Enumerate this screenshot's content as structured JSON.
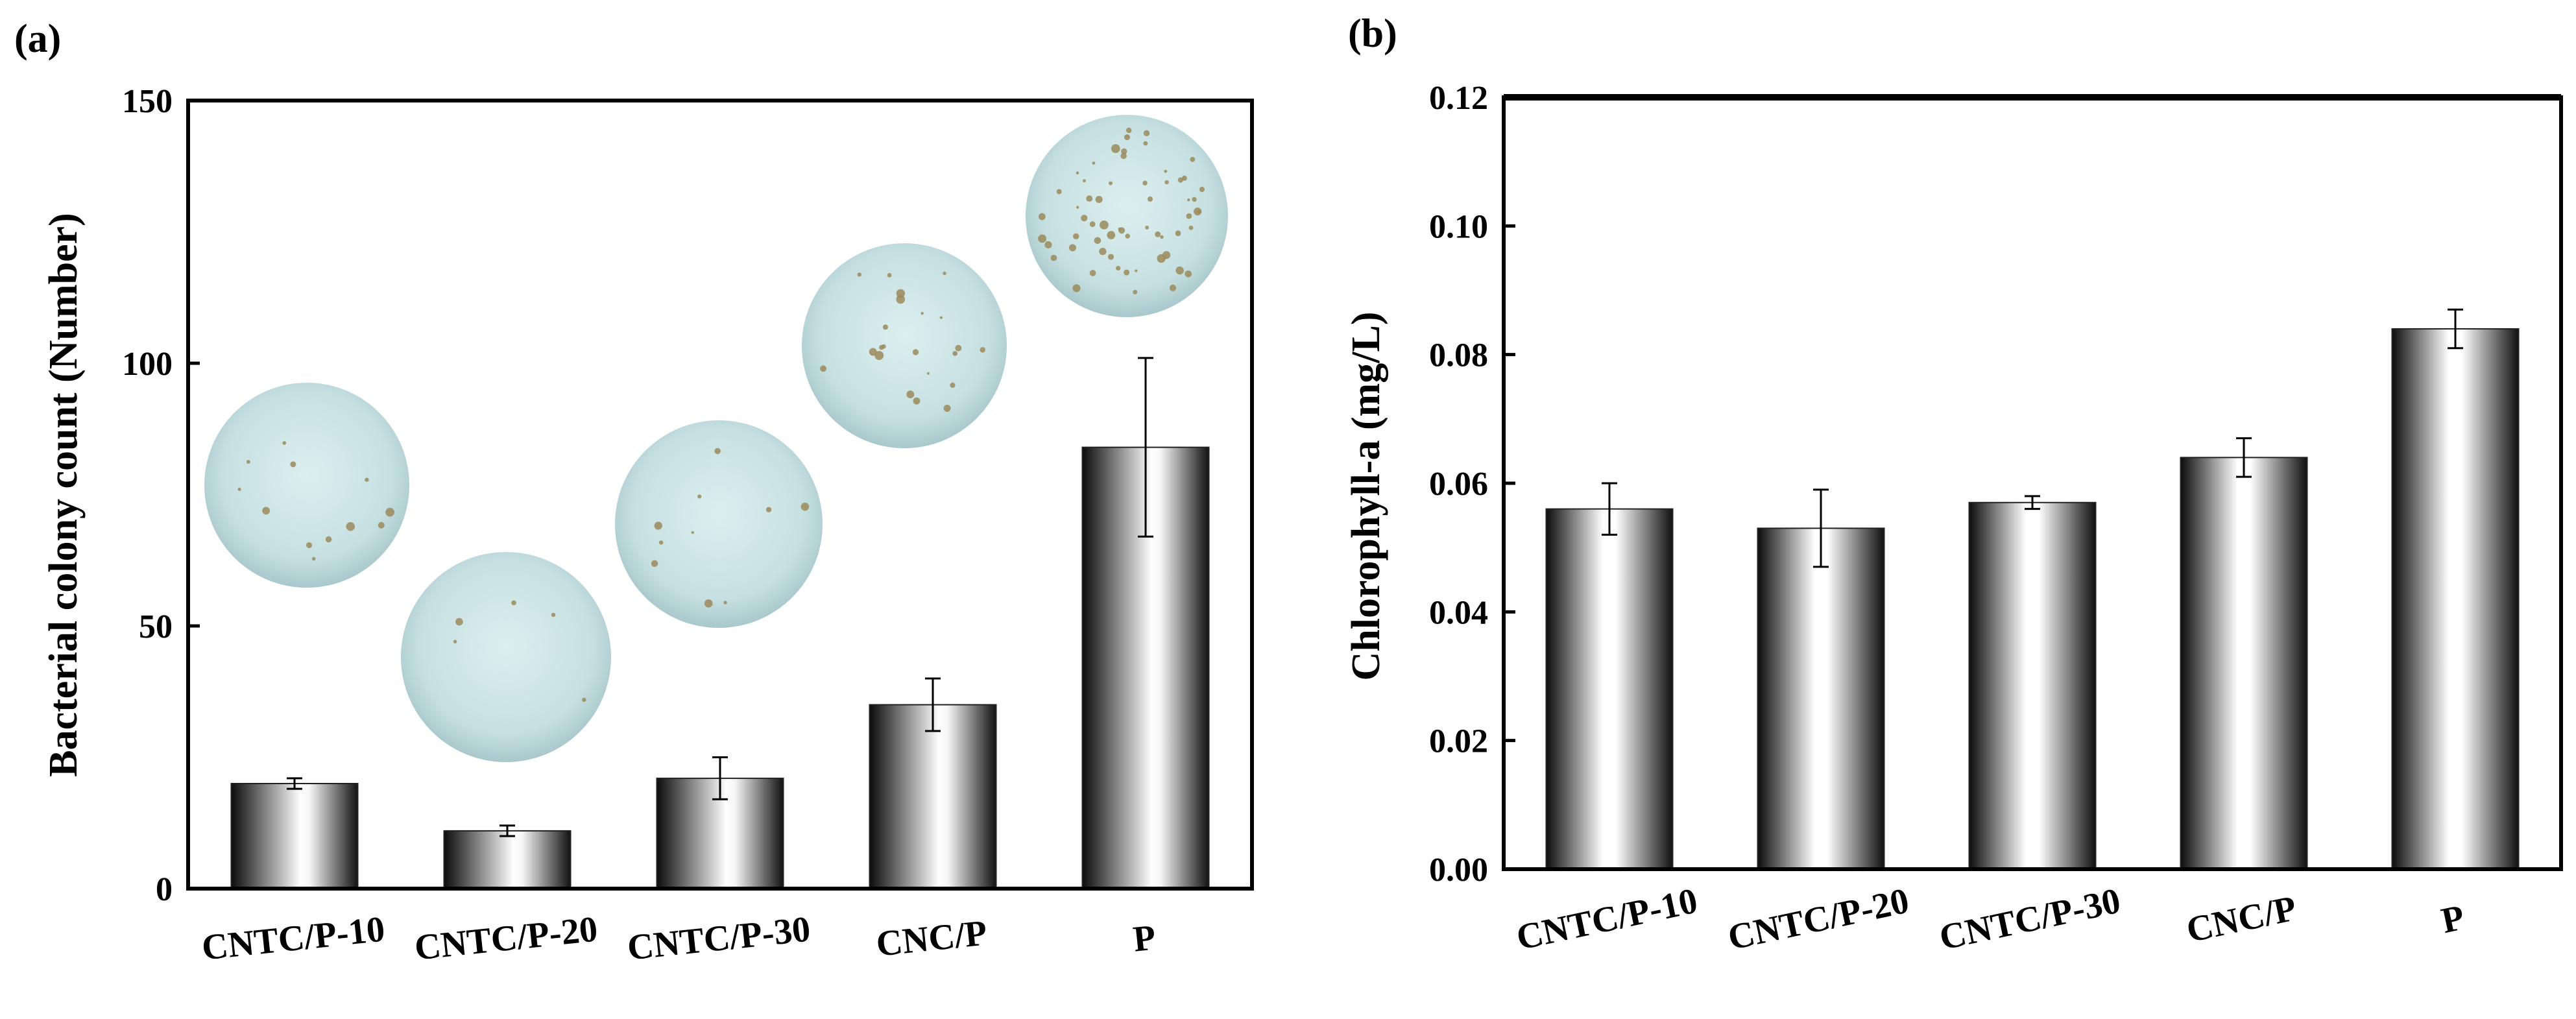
{
  "chart_data": [
    {
      "panel_label": "(a)",
      "type": "bar",
      "title": "",
      "xlabel": "",
      "ylabel": "Bacterial colony count (Number)",
      "ylim": [
        0,
        150
      ],
      "yticks": [
        "0",
        "50",
        "100",
        "150"
      ],
      "categories": [
        "CNTC/P-10",
        "CNTC/P-20",
        "CNTC/P-30",
        "CNC/P",
        "P"
      ],
      "values": [
        20,
        11,
        21,
        35,
        84
      ],
      "errors": [
        1,
        1,
        4,
        5,
        17
      ],
      "insets": [
        {
          "category": "CNTC/P-10",
          "depiction": "agar plate with few colonies",
          "colonies": 12
        },
        {
          "category": "CNTC/P-20",
          "depiction": "agar plate with very few colonies",
          "colonies": 5
        },
        {
          "category": "CNTC/P-30",
          "depiction": "agar plate with few colonies",
          "colonies": 10
        },
        {
          "category": "CNC/P",
          "depiction": "agar plate with more colonies",
          "colonies": 22
        },
        {
          "category": "P",
          "depiction": "agar plate with many colonies",
          "colonies": 60
        }
      ]
    },
    {
      "panel_label": "(b)",
      "type": "bar",
      "title": "",
      "xlabel": "",
      "ylabel": "Chlorophyll-a (mg/L)",
      "ylim": [
        0,
        0.12
      ],
      "yticks": [
        "0.00",
        "0.02",
        "0.04",
        "0.06",
        "0.08",
        "0.10",
        "0.12"
      ],
      "categories": [
        "CNTC/P-10",
        "CNTC/P-20",
        "CNTC/P-30",
        "CNC/P",
        "P"
      ],
      "values": [
        0.056,
        0.053,
        0.057,
        0.064,
        0.084
      ],
      "errors": [
        0.004,
        0.006,
        0.001,
        0.003,
        0.003
      ]
    }
  ],
  "colors": {
    "bar_dark": "#111111",
    "bar_light": "#ffffff",
    "plate_fill": "#c8e3e5",
    "colony": "#9b8a5a"
  }
}
